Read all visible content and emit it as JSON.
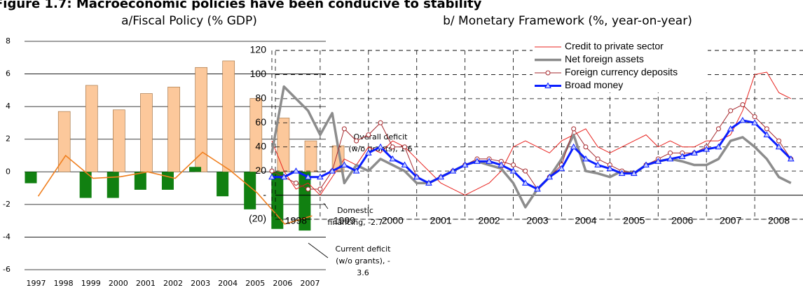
{
  "figure_title": "Figure 1.7: Macroeconomic policies have been conducive to stability",
  "chart_data": [
    {
      "type": "bar",
      "title": "a/Fiscal Policy (% GDP)",
      "categories": [
        "1997",
        "1998",
        "1999",
        "2000",
        "2001",
        "2002",
        "2003",
        "2004",
        "2005",
        "2006",
        "2007"
      ],
      "ylim": [
        -6,
        8
      ],
      "yticks": [
        -6,
        -4,
        -2,
        0,
        2,
        4,
        6,
        8
      ],
      "grid": true,
      "series": [
        {
          "name": "Overall deficit (w/o grants)",
          "type": "bar",
          "color": "#fcc89b",
          "values": [
            3.7,
            5.3,
            3.8,
            4.8,
            5.2,
            6.4,
            6.8,
            4.5,
            3.3,
            1.9,
            1.6
          ]
        },
        {
          "name": "Current deficit (w/o grants)",
          "type": "bar",
          "color": "#118011",
          "values": [
            -0.7,
            0,
            -1.6,
            -1.6,
            -1.1,
            -1.1,
            0.3,
            -1.5,
            -2.3,
            -3.5,
            -3.6
          ]
        },
        {
          "name": "Domestic financing",
          "type": "line",
          "color": "#f07f1e",
          "values": [
            -1.5,
            1.0,
            -0.4,
            -0.3,
            0.0,
            -0.4,
            1.2,
            0.1,
            -1.3,
            -3.2,
            -2.7
          ]
        }
      ],
      "annotations": [
        [
          "Overall deficit",
          "(w/o grants), 1.6"
        ],
        [
          "Domestic",
          "financing, -2.7"
        ],
        [
          "Current deficit",
          "(w/o grants), -",
          "3.6"
        ]
      ]
    },
    {
      "type": "line",
      "title": "b/ Monetary Framework (%, year-on-year)",
      "x": [
        1998,
        1998.25,
        1998.5,
        1998.75,
        1999,
        1999.25,
        1999.5,
        1999.75,
        2000,
        2000.25,
        2000.5,
        2000.75,
        2001,
        2001.25,
        2001.5,
        2001.75,
        2002,
        2002.25,
        2002.5,
        2002.75,
        2003,
        2003.25,
        2003.5,
        2003.75,
        2004,
        2004.25,
        2004.5,
        2004.75,
        2005,
        2005.25,
        2005.5,
        2005.75,
        2006,
        2006.25,
        2006.5,
        2006.75,
        2007,
        2007.25,
        2007.5,
        2007.75,
        2008,
        2008.25,
        2008.5,
        2008.75
      ],
      "xlim": [
        1998,
        2009
      ],
      "xticks": [
        1998,
        1999,
        2000,
        2001,
        2002,
        2003,
        2004,
        2005,
        2006,
        2007,
        2008
      ],
      "ylim": [
        -20,
        120
      ],
      "yticks": [
        {
          "value": -20,
          "label": "(20)"
        },
        {
          "value": 0,
          "label": "-"
        },
        20,
        40,
        60,
        80,
        100,
        120
      ],
      "grid": true,
      "legend": "top",
      "series": [
        {
          "name": "Credit to private sector",
          "color": "#e8231f",
          "width": 1,
          "marker": "none",
          "values": [
            45,
            20,
            5,
            10,
            0,
            15,
            30,
            25,
            40,
            35,
            45,
            40,
            30,
            20,
            10,
            5,
            0,
            5,
            10,
            20,
            40,
            45,
            40,
            35,
            45,
            50,
            55,
            40,
            35,
            40,
            45,
            50,
            40,
            45,
            40,
            40,
            45,
            45,
            50,
            70,
            100,
            102,
            85,
            80
          ]
        },
        {
          "name": "Net foreign assets",
          "color": "#8c8c8c",
          "width": 3.5,
          "marker": "none",
          "values": [
            35,
            90,
            80,
            70,
            50,
            68,
            10,
            25,
            20,
            30,
            25,
            20,
            10,
            10,
            15,
            20,
            25,
            28,
            25,
            22,
            10,
            -10,
            5,
            15,
            30,
            50,
            20,
            18,
            15,
            20,
            18,
            25,
            28,
            30,
            28,
            25,
            25,
            30,
            45,
            48,
            40,
            30,
            15,
            10
          ]
        },
        {
          "name": "Foreign currency deposits",
          "color": "#a5282d",
          "width": 1,
          "marker": "circle",
          "values": [
            20,
            15,
            10,
            5,
            5,
            20,
            55,
            45,
            50,
            60,
            40,
            40,
            15,
            10,
            15,
            20,
            25,
            30,
            30,
            28,
            25,
            20,
            5,
            15,
            25,
            55,
            40,
            30,
            25,
            20,
            18,
            25,
            30,
            35,
            35,
            35,
            40,
            55,
            70,
            75,
            65,
            55,
            45,
            30
          ]
        },
        {
          "name": "Broad money",
          "color": "#0a1eff",
          "width": 3,
          "marker": "triangle",
          "values": [
            15,
            15,
            20,
            15,
            15,
            20,
            25,
            20,
            35,
            40,
            30,
            25,
            15,
            10,
            15,
            20,
            25,
            28,
            28,
            25,
            20,
            10,
            5,
            15,
            22,
            40,
            30,
            25,
            22,
            18,
            18,
            25,
            28,
            30,
            32,
            35,
            38,
            40,
            55,
            62,
            60,
            50,
            40,
            30
          ]
        }
      ]
    }
  ]
}
